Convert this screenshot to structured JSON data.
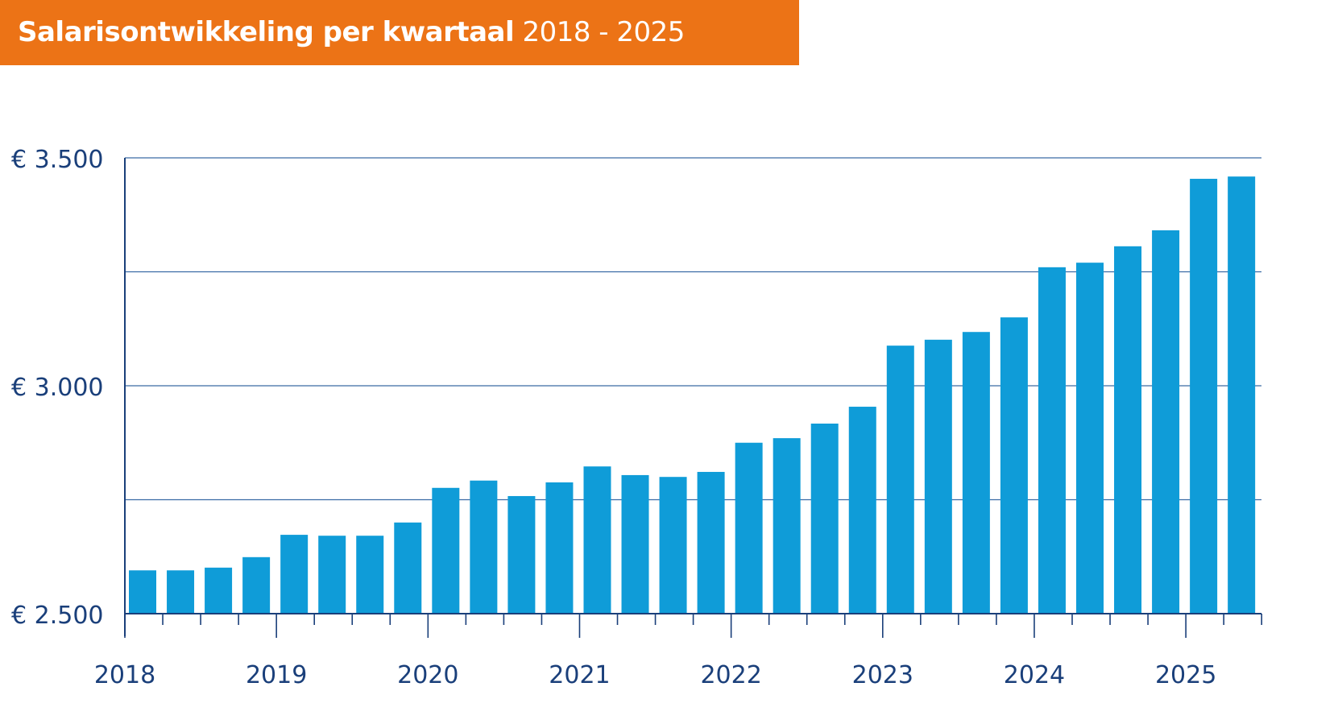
{
  "chart_data": {
    "type": "bar",
    "title": "Salarisontwikkeling per kwartaal",
    "title_period": "2018 - 2025",
    "xlabel": "",
    "ylabel": "",
    "ylim": [
      2500,
      3500
    ],
    "y_ticks": [
      2500,
      3000,
      3500
    ],
    "y_tick_labels": [
      "€ 2.500",
      "€ 3.000",
      "€ 3.500"
    ],
    "y_gridlines": [
      2750,
      3000,
      3250,
      3500
    ],
    "grid": true,
    "x_tick_labels": [
      "2018",
      "2019",
      "2020",
      "2021",
      "2022",
      "2023",
      "2024",
      "2025"
    ],
    "categories": [
      "2018 Q1",
      "2018 Q2",
      "2018 Q3",
      "2018 Q4",
      "2019 Q1",
      "2019 Q2",
      "2019 Q3",
      "2019 Q4",
      "2020 Q1",
      "2020 Q2",
      "2020 Q3",
      "2020 Q4",
      "2021 Q1",
      "2021 Q2",
      "2021 Q3",
      "2021 Q4",
      "2022 Q1",
      "2022 Q2",
      "2022 Q3",
      "2022 Q4",
      "2023 Q1",
      "2023 Q2",
      "2023 Q3",
      "2023 Q4",
      "2024 Q1",
      "2024 Q2",
      "2024 Q3",
      "2024 Q4",
      "2025 Q1",
      "2025 Q2"
    ],
    "values": [
      2595,
      2595,
      2601,
      2624,
      2673,
      2671,
      2671,
      2700,
      2776,
      2792,
      2758,
      2788,
      2823,
      2804,
      2800,
      2811,
      2875,
      2885,
      2917,
      2954,
      3088,
      3101,
      3118,
      3150,
      3260,
      3270,
      3306,
      3341,
      3454,
      3459
    ],
    "colors": {
      "bar": "#0F9CD8",
      "banner": "#EC7316",
      "text": "#1A3F7A",
      "grid": "#3A6BA5"
    }
  }
}
